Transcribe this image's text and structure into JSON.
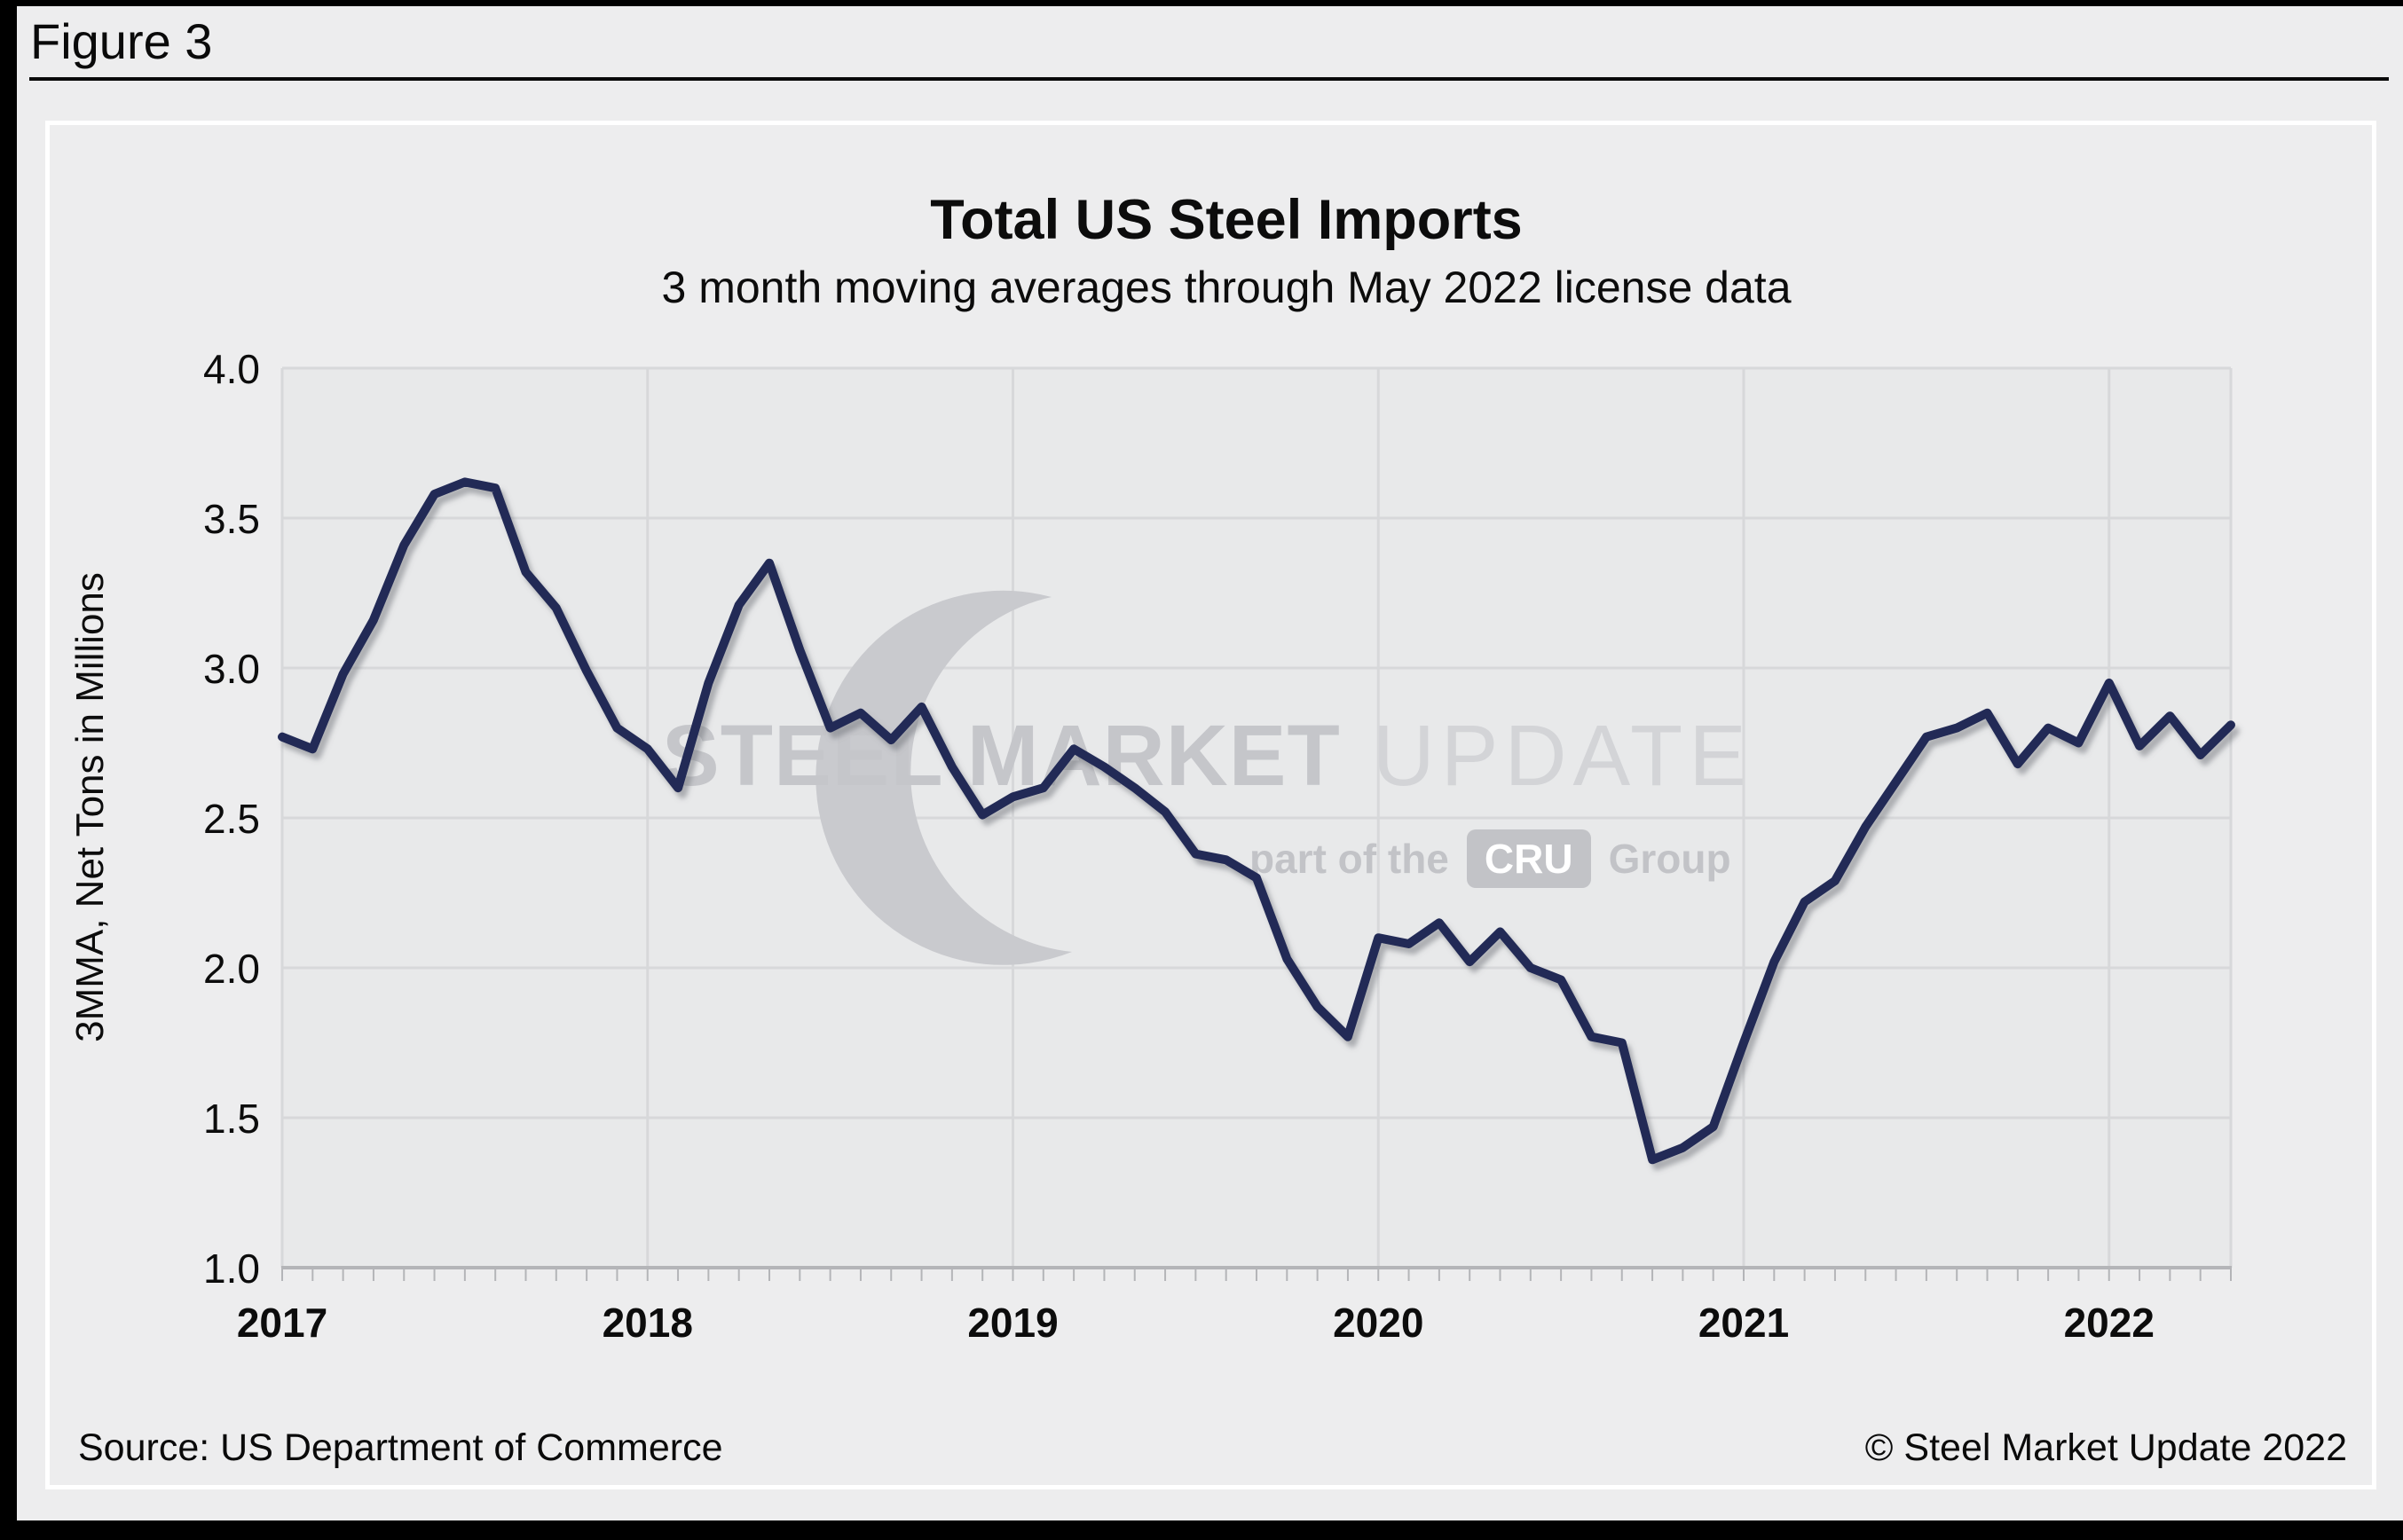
{
  "figure_label": "Figure 3",
  "chart": {
    "title": "Total US Steel Imports",
    "subtitle": "3 month moving averages through May 2022 license data",
    "y_axis_title": "3MMA, Net Tons in Millions"
  },
  "watermark": {
    "brand_bold": "STEEL MARKET",
    "brand_light": "UPDATE",
    "sub_prefix": "part of the",
    "sub_box": "CRU",
    "sub_suffix": "Group"
  },
  "footer": {
    "source": "Source: US Department of Commerce",
    "copyright": "© Steel Market Update 2022"
  },
  "colors": {
    "line": "#212b57",
    "plot_background": "#e8e9ea",
    "gridline": "#d7d8da",
    "axis": "#b4b5b8",
    "watermark_gray": "#c9cace"
  },
  "chart_data": {
    "type": "line",
    "title": "Total US Steel Imports",
    "subtitle": "3 month moving averages through May 2022 license data",
    "ylabel": "3MMA, Net Tons in Millions",
    "xlabel": "",
    "ylim": [
      1.0,
      4.0
    ],
    "y_ticks": [
      4.0,
      3.5,
      3.0,
      2.5,
      2.0,
      1.5,
      1.0
    ],
    "x_tick_labels": [
      "2017",
      "2018",
      "2019",
      "2020",
      "2021",
      "2022"
    ],
    "grid": true,
    "legend": "none",
    "x": [
      "2017-01",
      "2017-02",
      "2017-03",
      "2017-04",
      "2017-05",
      "2017-06",
      "2017-07",
      "2017-08",
      "2017-09",
      "2017-10",
      "2017-11",
      "2017-12",
      "2018-01",
      "2018-02",
      "2018-03",
      "2018-04",
      "2018-05",
      "2018-06",
      "2018-07",
      "2018-08",
      "2018-09",
      "2018-10",
      "2018-11",
      "2018-12",
      "2019-01",
      "2019-02",
      "2019-03",
      "2019-04",
      "2019-05",
      "2019-06",
      "2019-07",
      "2019-08",
      "2019-09",
      "2019-10",
      "2019-11",
      "2019-12",
      "2020-01",
      "2020-02",
      "2020-03",
      "2020-04",
      "2020-05",
      "2020-06",
      "2020-07",
      "2020-08",
      "2020-09",
      "2020-10",
      "2020-11",
      "2020-12",
      "2021-01",
      "2021-02",
      "2021-03",
      "2021-04",
      "2021-05",
      "2021-06",
      "2021-07",
      "2021-08",
      "2021-09",
      "2021-10",
      "2021-11",
      "2021-12",
      "2022-01",
      "2022-02",
      "2022-03",
      "2022-04",
      "2022-05"
    ],
    "series": [
      {
        "name": "Total US steel imports, 3-month moving average (million net tons)",
        "values": [
          2.77,
          2.73,
          2.98,
          3.16,
          3.41,
          3.58,
          3.62,
          3.6,
          3.32,
          3.2,
          2.99,
          2.8,
          2.73,
          2.6,
          2.95,
          3.21,
          3.35,
          3.06,
          2.8,
          2.85,
          2.76,
          2.87,
          2.67,
          2.51,
          2.57,
          2.6,
          2.73,
          2.67,
          2.6,
          2.52,
          2.38,
          2.36,
          2.3,
          2.03,
          1.87,
          1.77,
          2.1,
          2.08,
          2.15,
          2.02,
          2.12,
          2.0,
          1.96,
          1.77,
          1.75,
          1.36,
          1.4,
          1.47,
          1.75,
          2.02,
          2.22,
          2.29,
          2.47,
          2.62,
          2.77,
          2.8,
          2.85,
          2.68,
          2.8,
          2.75,
          2.95,
          2.74,
          2.84,
          2.71,
          2.81
        ]
      }
    ]
  }
}
